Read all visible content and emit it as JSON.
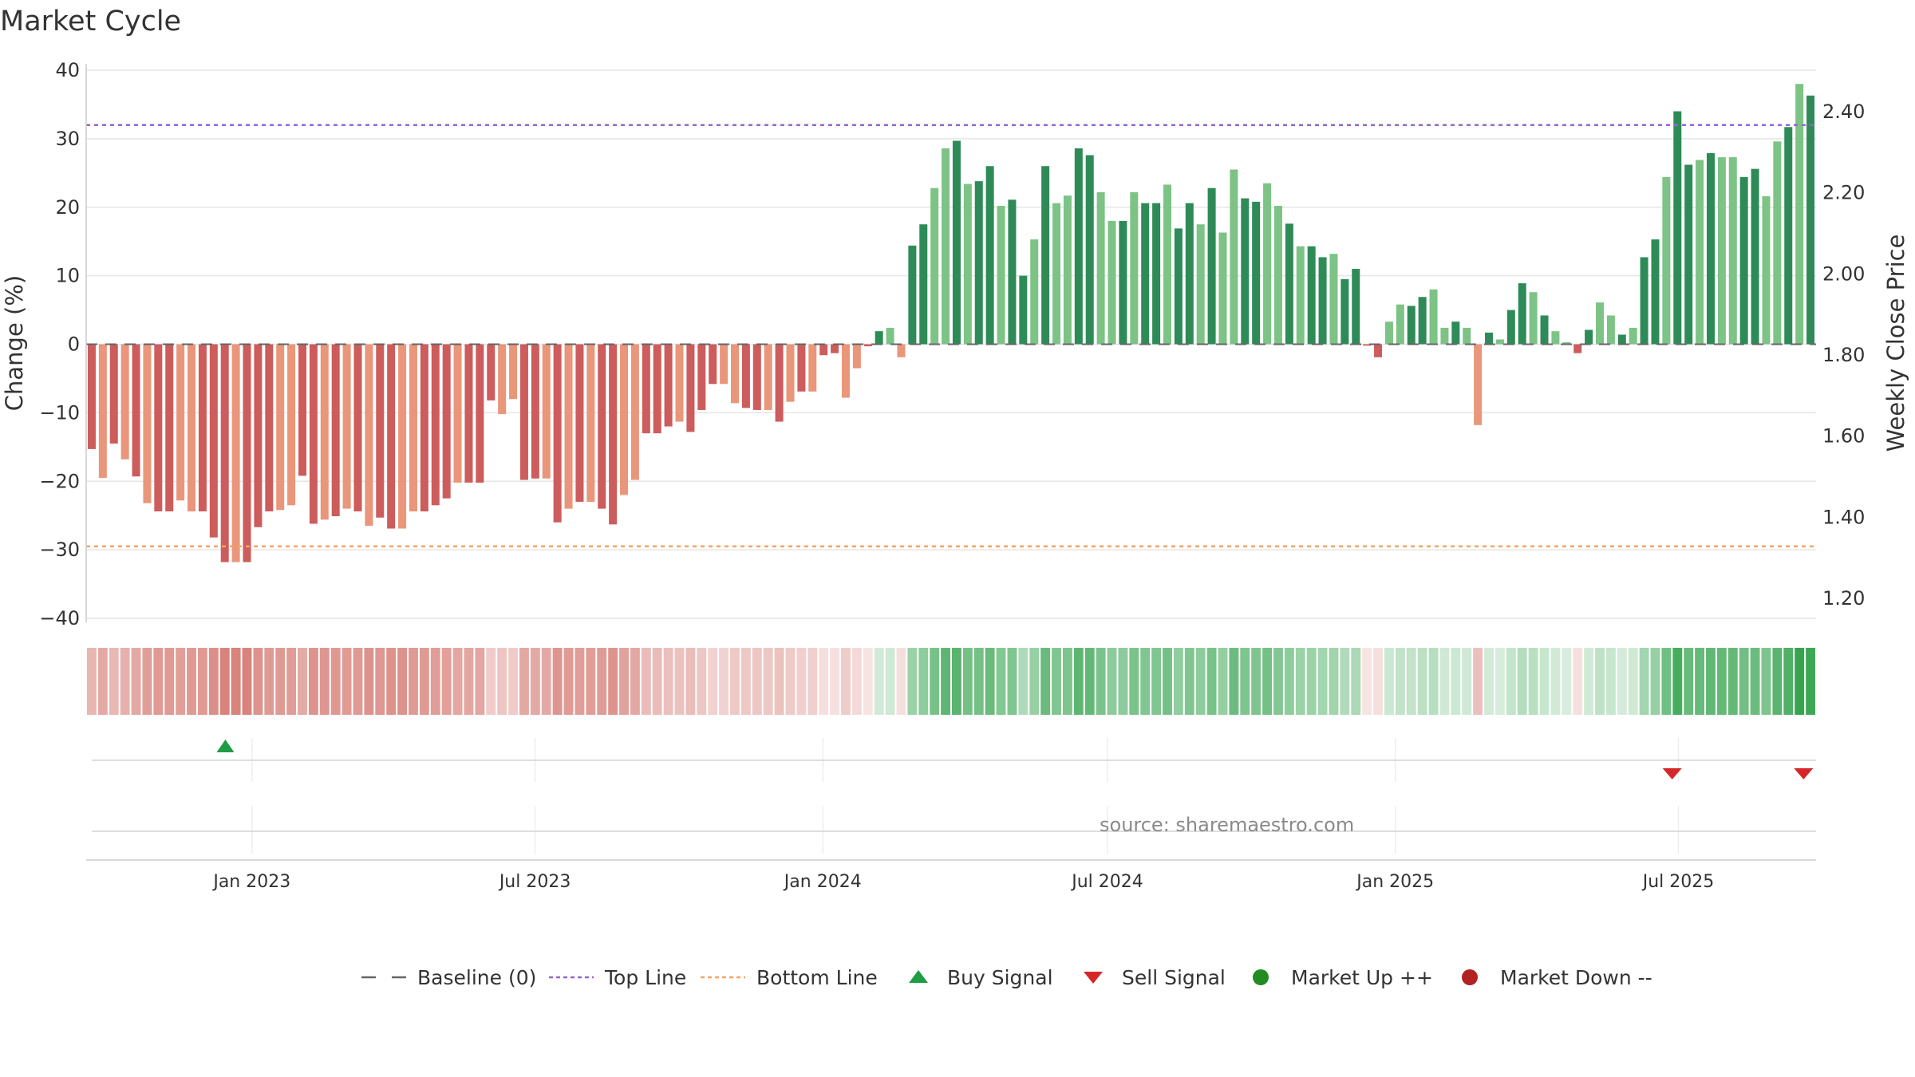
{
  "title": "Market Cycle",
  "source": "source: sharemaestro.com",
  "colors": {
    "bar_up_strong": "#2e8b57",
    "bar_up_light": "#7dc386",
    "bar_down_strong": "#cd5c5c",
    "bar_down_light": "#e9967a",
    "top_line": "#9966cc",
    "bottom_line": "#f4a460",
    "baseline": "#666666",
    "buy": "#1f9d45",
    "sell": "#d62728",
    "market_up": "#228b22",
    "market_down": "#b22222",
    "grid": "#e6e6e6"
  },
  "legend": [
    {
      "label": "Baseline (0)",
      "icon": "dash-line-icon"
    },
    {
      "label": "Top Line",
      "icon": "dotted-purple-line-icon"
    },
    {
      "label": "Bottom Line",
      "icon": "dotted-orange-line-icon"
    },
    {
      "label": "Buy Signal",
      "icon": "triangle-up-icon"
    },
    {
      "label": "Sell Signal",
      "icon": "triangle-down-icon"
    },
    {
      "label": "Market Up ++",
      "icon": "green-dot-icon"
    },
    {
      "label": "Market Down --",
      "icon": "red-dot-icon"
    }
  ],
  "chart_data": {
    "type": "bar",
    "title": "Market Cycle",
    "ylabel": "Change (%)",
    "y2label": "Weekly Close Price",
    "ylim": [
      -40,
      40
    ],
    "y_ticks": [
      "40",
      "30",
      "20",
      "10",
      "0",
      "−10",
      "−20",
      "−30",
      "−40"
    ],
    "y2_ticks": [
      "2.40",
      "2.20",
      "2.00",
      "1.80",
      "1.60",
      "1.40",
      "1.20"
    ],
    "x_ticks": [
      "Jan 2023",
      "Jul 2023",
      "Jan 2024",
      "Jul 2024",
      "Jan 2025",
      "Jul 2025"
    ],
    "x_range": [
      "2022-09-17",
      "2025-09-27"
    ],
    "top_line": 32,
    "bottom_line": -29.5,
    "grid": true,
    "legend_position": "bottom",
    "series": [
      {
        "values": [
          -15.3,
          -19.5,
          -14.5,
          -16.8,
          -19.3,
          -23.2,
          -24.4,
          -24.4,
          -22.8,
          -24.4,
          -24.4,
          -28.2,
          -31.8,
          -31.8,
          -31.8,
          -26.7,
          -24.4,
          -24.2,
          -23.5,
          -19.2,
          -26.2,
          -25.6,
          -25.1,
          -24.0,
          -24.4,
          -26.5,
          -25.3,
          -26.9,
          -26.9,
          -24.4,
          -24.4,
          -23.5,
          -22.5,
          -20.2,
          -20.2,
          -20.2,
          -8.2,
          -10.2,
          -8.0,
          -19.8,
          -19.6,
          -19.6,
          -26.0,
          -24.0,
          -23.0,
          -23.0,
          -24.0,
          -26.3,
          -22.0,
          -19.8,
          -13.0,
          -13.0,
          -12.0,
          -11.3,
          -12.8,
          -9.6,
          -5.8,
          -5.8,
          -8.6,
          -9.3,
          -9.6,
          -9.6,
          -11.3,
          -8.4,
          -6.9,
          -6.9,
          -1.6,
          -1.3,
          -7.8,
          -3.5,
          -0.3,
          1.9,
          2.4,
          -1.9,
          14.4,
          17.5,
          22.8,
          28.6,
          29.7,
          23.4,
          23.8,
          26.0,
          20.2,
          21.1,
          10.0,
          15.3,
          26.0,
          20.6,
          21.7,
          28.6,
          27.6,
          22.2,
          18.0,
          18.0,
          22.2,
          20.6,
          20.6,
          23.3,
          16.9,
          20.6,
          17.5,
          22.8,
          16.3,
          25.5,
          21.3,
          20.8,
          23.5,
          20.2,
          17.6,
          14.3,
          14.3,
          12.7,
          13.2,
          9.5,
          11.0,
          -0.2,
          -1.9,
          3.3,
          5.8,
          5.6,
          6.9,
          8.0,
          2.4,
          3.3,
          2.4,
          -11.8,
          1.7,
          0.7,
          5.0,
          8.9,
          7.6,
          4.2,
          1.9,
          0.3,
          -1.3,
          2.1,
          6.1,
          4.2,
          1.4,
          2.4,
          12.7,
          15.3,
          24.4,
          34.0,
          26.2,
          26.9,
          27.9,
          27.3,
          27.3,
          24.4,
          25.6,
          21.6,
          29.6,
          31.7,
          38.0,
          36.3
        ]
      }
    ],
    "signals": [
      {
        "type": "Buy Signal",
        "date": "2022-12-15"
      },
      {
        "type": "Sell Signal",
        "date": "2025-06-27"
      },
      {
        "type": "Sell Signal",
        "date": "2025-09-19"
      }
    ]
  }
}
